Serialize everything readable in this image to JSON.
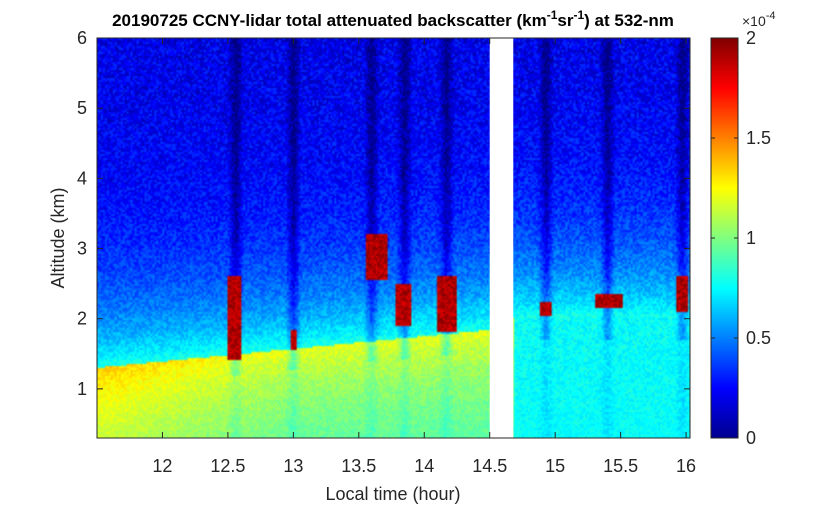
{
  "chart_data": {
    "type": "heatmap",
    "title": {
      "prefix": "20190725 CCNY-lidar total attenuated backscatter (km",
      "sup1": "-1",
      "mid": "sr",
      "sup2": "-1",
      "suffix": ") at 532-nm"
    },
    "xlabel": "Local time (hour)",
    "ylabel": "Altitude (km)",
    "xlim": [
      11.5,
      16.03
    ],
    "ylim": [
      0.3,
      6.0
    ],
    "xticks": [
      12,
      12.5,
      13,
      13.5,
      14,
      14.5,
      15,
      15.5,
      16
    ],
    "xtick_labels": [
      "12",
      "12.5",
      "13",
      "13.5",
      "14",
      "14.5",
      "15",
      "15.5",
      "16"
    ],
    "yticks": [
      1,
      2,
      3,
      4,
      5,
      6
    ],
    "ytick_labels": [
      "1",
      "2",
      "3",
      "4",
      "5",
      "6"
    ],
    "colorbar": {
      "colormap": "jet",
      "range": [
        0,
        2
      ],
      "ticks": [
        0,
        0.5,
        1,
        1.5,
        2
      ],
      "tick_labels": [
        "0",
        "0.5",
        "1",
        "1.5",
        "2"
      ],
      "exponent_label": "×10",
      "exponent": "-4"
    },
    "data_gap": [
      14.5,
      14.68
    ],
    "cloud_events": [
      {
        "time_start": 12.5,
        "time_end": 12.6,
        "alt_base": 1.4,
        "alt_top": 2.6
      },
      {
        "time_start": 12.98,
        "time_end": 13.02,
        "alt_base": 1.55,
        "alt_top": 1.85
      },
      {
        "time_start": 13.55,
        "time_end": 13.72,
        "alt_base": 2.55,
        "alt_top": 3.2
      },
      {
        "time_start": 13.78,
        "time_end": 13.9,
        "alt_base": 1.9,
        "alt_top": 2.5
      },
      {
        "time_start": 14.1,
        "time_end": 14.25,
        "alt_base": 1.8,
        "alt_top": 2.6
      },
      {
        "time_start": 14.88,
        "time_end": 14.98,
        "alt_base": 2.05,
        "alt_top": 2.25
      },
      {
        "time_start": 15.3,
        "time_end": 15.52,
        "alt_base": 2.15,
        "alt_top": 2.35
      },
      {
        "time_start": 15.92,
        "time_end": 16.02,
        "alt_base": 2.1,
        "alt_top": 2.6
      }
    ]
  }
}
